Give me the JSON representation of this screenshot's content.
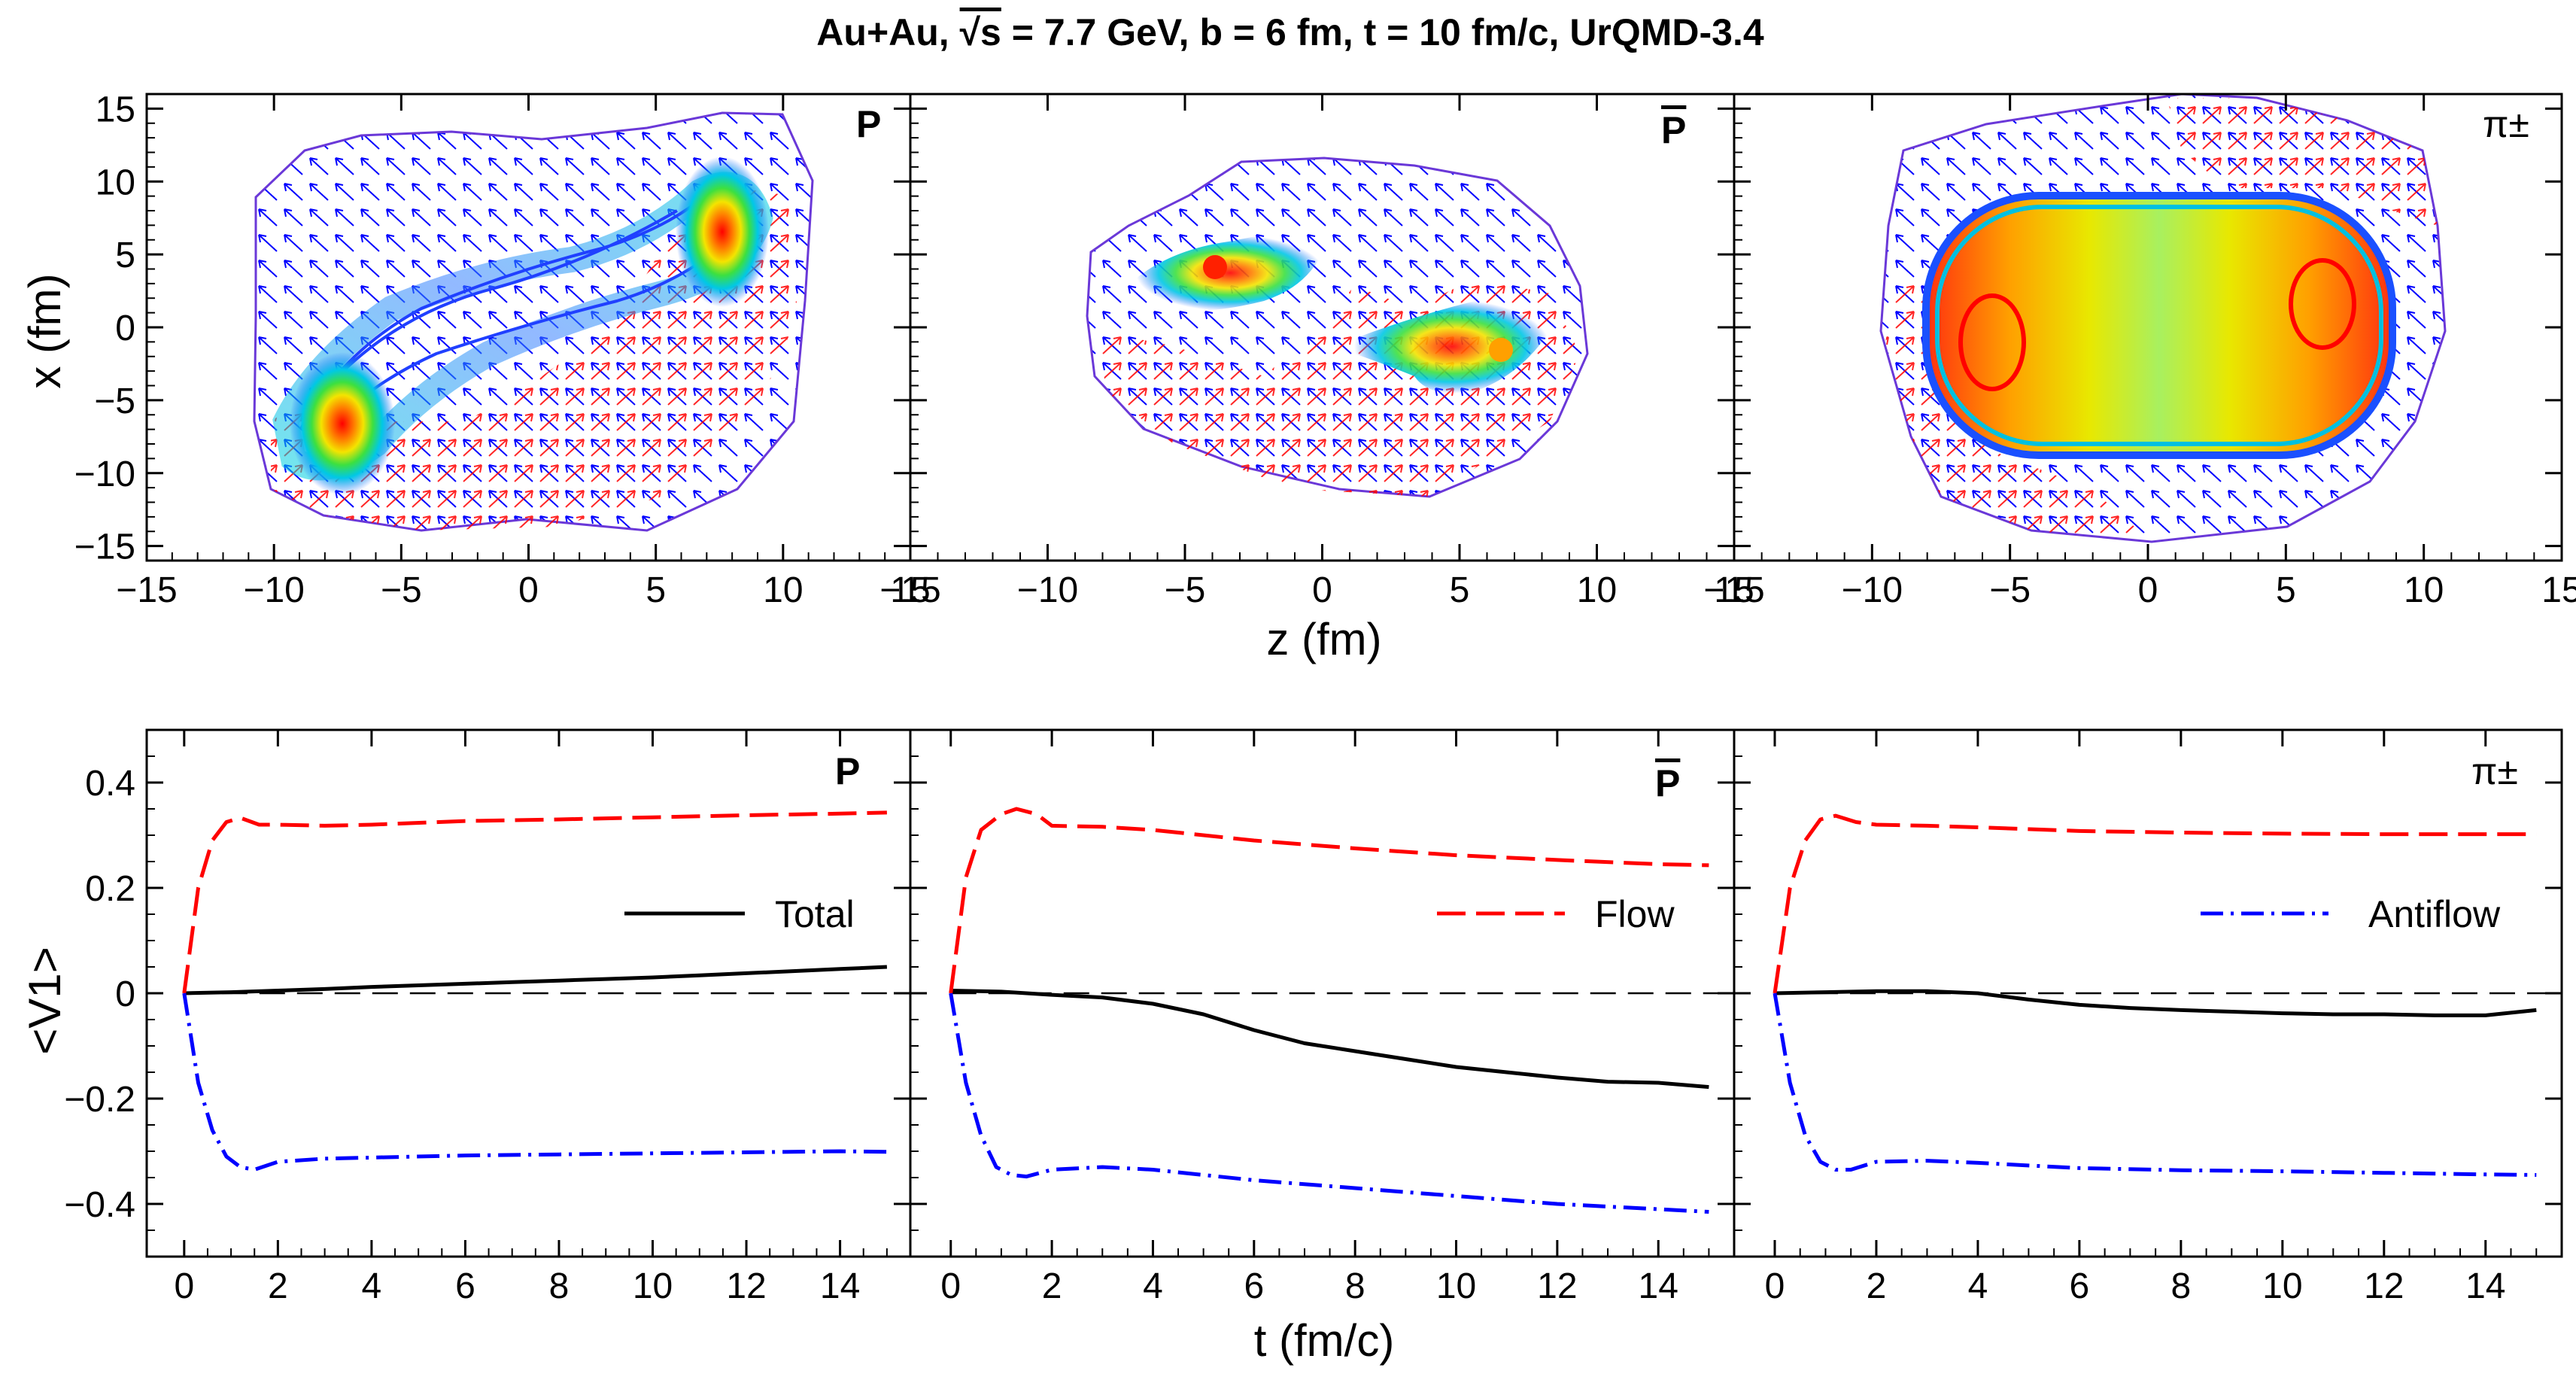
{
  "title": {
    "prefix": "Au+Au,  ",
    "sqrt": "√s",
    "rest": " = 7.7 GeV, b = 6 fm, t = 10 fm/c, UrQMD-3.4"
  },
  "colors": {
    "flow": "#ff0000",
    "antiflow": "#0000ff",
    "total": "#000000",
    "frame": "#000000",
    "contour_outer": "#7b3fe0"
  },
  "chart_data": [
    {
      "type": "heatmap",
      "description_label": "P",
      "panel_label": "P",
      "xlabel": "z (fm)",
      "ylabel": "x (fm)",
      "xlim": [
        -15,
        15
      ],
      "ylim": [
        -16,
        16
      ],
      "x_ticks": [
        -15,
        -10,
        -5,
        0,
        5,
        10,
        15
      ],
      "y_ticks": [
        -15,
        -10,
        -5,
        0,
        5,
        10,
        15
      ],
      "hotspots": [
        {
          "z": -7.8,
          "x": -6.5
        },
        {
          "z": 7.8,
          "x": 6.5
        }
      ]
    },
    {
      "type": "heatmap",
      "panel_label": "P",
      "panel_label_bar": true,
      "xlabel": "z (fm)",
      "ylabel": "x (fm)",
      "xlim": [
        -15,
        15
      ],
      "ylim": [
        -16,
        16
      ],
      "x_ticks": [
        -15,
        -10,
        -5,
        0,
        5,
        10,
        15
      ],
      "hotspots": [
        {
          "z": -5.5,
          "x": 3.5
        },
        {
          "z": 6.5,
          "x": -2.0
        }
      ]
    },
    {
      "type": "heatmap",
      "panel_label": "π±",
      "xlabel": "z (fm)",
      "ylabel": "x (fm)",
      "xlim": [
        -15,
        15
      ],
      "ylim": [
        -16,
        16
      ],
      "x_ticks": [
        -15,
        -10,
        -5,
        0,
        5,
        10,
        15
      ],
      "hotspots": [
        {
          "z": -6.5,
          "x": -1.0
        },
        {
          "z": 6.5,
          "x": 1.5
        }
      ]
    },
    {
      "type": "line",
      "panel_label": "P",
      "xlabel": "t (fm/c)",
      "ylabel": "<V1>",
      "xlim": [
        -0.8,
        15.5
      ],
      "ylim": [
        -0.5,
        0.5
      ],
      "x_ticks": [
        0,
        2,
        4,
        6,
        8,
        10,
        12,
        14
      ],
      "y_ticks": [
        -0.4,
        -0.2,
        0,
        0.2,
        0.4
      ],
      "series": [
        {
          "name": "Total",
          "style": "solid",
          "x": [
            0,
            1,
            2,
            3,
            4,
            5,
            6,
            7,
            8,
            9,
            10,
            11,
            12,
            13,
            14,
            15
          ],
          "values": [
            0,
            0.002,
            0.005,
            0.008,
            0.012,
            0.015,
            0.018,
            0.021,
            0.024,
            0.027,
            0.03,
            0.034,
            0.038,
            0.042,
            0.046,
            0.05
          ]
        },
        {
          "name": "Flow",
          "style": "dashed",
          "x": [
            0,
            0.3,
            0.6,
            0.9,
            1.2,
            1.6,
            2,
            3,
            4,
            6,
            8,
            10,
            12,
            14,
            15
          ],
          "values": [
            0,
            0.2,
            0.29,
            0.325,
            0.333,
            0.32,
            0.32,
            0.318,
            0.32,
            0.327,
            0.33,
            0.334,
            0.338,
            0.341,
            0.343
          ]
        },
        {
          "name": "Antiflow",
          "style": "dashdot",
          "x": [
            0,
            0.3,
            0.6,
            0.9,
            1.2,
            1.5,
            2,
            3,
            4,
            6,
            8,
            10,
            12,
            14,
            15
          ],
          "values": [
            0,
            -0.17,
            -0.26,
            -0.31,
            -0.33,
            -0.335,
            -0.32,
            -0.314,
            -0.312,
            -0.308,
            -0.306,
            -0.304,
            -0.302,
            -0.3,
            -0.301
          ]
        }
      ],
      "legend_entry": "Total"
    },
    {
      "type": "line",
      "panel_label": "P",
      "panel_label_bar": true,
      "xlabel": "t (fm/c)",
      "ylabel": "<V1>",
      "xlim": [
        -0.8,
        15.5
      ],
      "ylim": [
        -0.5,
        0.5
      ],
      "x_ticks": [
        0,
        2,
        4,
        6,
        8,
        10,
        12,
        14
      ],
      "series": [
        {
          "name": "Total",
          "style": "solid",
          "x": [
            0,
            1,
            2,
            3,
            4,
            5,
            6,
            7,
            8,
            9,
            10,
            11,
            12,
            13,
            14,
            15
          ],
          "values": [
            0.005,
            0.003,
            -0.003,
            -0.008,
            -0.02,
            -0.04,
            -0.07,
            -0.095,
            -0.11,
            -0.125,
            -0.14,
            -0.15,
            -0.16,
            -0.168,
            -0.17,
            -0.178
          ]
        },
        {
          "name": "Flow",
          "style": "dashed",
          "x": [
            0,
            0.3,
            0.6,
            1.0,
            1.3,
            1.7,
            2,
            3,
            4,
            6,
            8,
            10,
            12,
            14,
            15
          ],
          "values": [
            0,
            0.22,
            0.31,
            0.34,
            0.35,
            0.34,
            0.318,
            0.316,
            0.31,
            0.29,
            0.275,
            0.262,
            0.253,
            0.245,
            0.243
          ]
        },
        {
          "name": "Antiflow",
          "style": "dashdot",
          "x": [
            0,
            0.3,
            0.6,
            0.9,
            1.2,
            1.5,
            2,
            3,
            4,
            6,
            8,
            10,
            12,
            14,
            15
          ],
          "values": [
            0,
            -0.17,
            -0.27,
            -0.33,
            -0.345,
            -0.348,
            -0.335,
            -0.33,
            -0.335,
            -0.355,
            -0.37,
            -0.385,
            -0.4,
            -0.41,
            -0.415
          ]
        }
      ],
      "legend_entry": "Flow"
    },
    {
      "type": "line",
      "panel_label": "π±",
      "xlabel": "t (fm/c)",
      "ylabel": "<V1>",
      "xlim": [
        -0.8,
        15.5
      ],
      "ylim": [
        -0.5,
        0.5
      ],
      "x_ticks": [
        0,
        2,
        4,
        6,
        8,
        10,
        12,
        14
      ],
      "series": [
        {
          "name": "Total",
          "style": "solid",
          "x": [
            0,
            1,
            2,
            3,
            4,
            5,
            6,
            7,
            8,
            9,
            10,
            11,
            12,
            13,
            14,
            15
          ],
          "values": [
            0,
            0.002,
            0.004,
            0.004,
            0,
            -0.012,
            -0.022,
            -0.028,
            -0.032,
            -0.035,
            -0.038,
            -0.04,
            -0.04,
            -0.042,
            -0.042,
            -0.032
          ]
        },
        {
          "name": "Flow",
          "style": "dashed",
          "x": [
            0,
            0.3,
            0.6,
            0.9,
            1.2,
            1.6,
            2,
            3,
            4,
            6,
            8,
            10,
            12,
            14,
            15
          ],
          "values": [
            0,
            0.2,
            0.29,
            0.33,
            0.337,
            0.325,
            0.32,
            0.318,
            0.315,
            0.308,
            0.305,
            0.303,
            0.302,
            0.302,
            0.302
          ]
        },
        {
          "name": "Antiflow",
          "style": "dashdot",
          "x": [
            0,
            0.3,
            0.6,
            0.9,
            1.2,
            1.5,
            2,
            3,
            4,
            6,
            8,
            10,
            12,
            14,
            15
          ],
          "values": [
            0,
            -0.17,
            -0.27,
            -0.32,
            -0.335,
            -0.335,
            -0.32,
            -0.318,
            -0.322,
            -0.332,
            -0.336,
            -0.338,
            -0.341,
            -0.344,
            -0.345
          ]
        }
      ],
      "legend_entry": "Antiflow"
    }
  ]
}
